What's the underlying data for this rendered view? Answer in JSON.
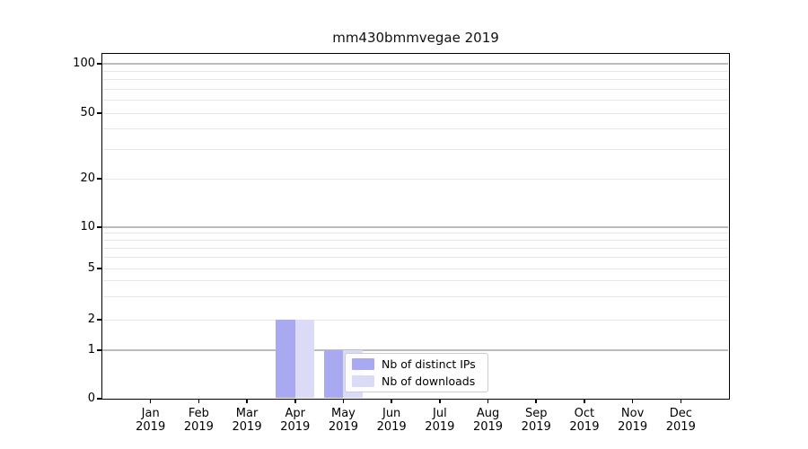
{
  "title": "mm430bmmvegae 2019",
  "chart_data": {
    "type": "bar",
    "title": "mm430bmmvegae 2019",
    "categories": [
      "Jan",
      "Feb",
      "Mar",
      "Apr",
      "May",
      "Jun",
      "Jul",
      "Aug",
      "Sep",
      "Oct",
      "Nov",
      "Dec"
    ],
    "category_year": "2019",
    "series": [
      {
        "name": "Nb of distinct IPs",
        "color": "#a9a9f1",
        "values": [
          0,
          0,
          0,
          2,
          1,
          0,
          0,
          0,
          0,
          0,
          0,
          0
        ]
      },
      {
        "name": "Nb of downloads",
        "color": "#dbdbf8",
        "values": [
          0,
          0,
          0,
          2,
          1,
          0,
          0,
          0,
          0,
          0,
          0,
          0
        ]
      }
    ],
    "y_axis": {
      "ticks": [
        0,
        1,
        2,
        5,
        10,
        20,
        50,
        100
      ],
      "scale": "log-like with zero baseline",
      "range": [
        0,
        120
      ]
    },
    "x_axis": {
      "tick_label_lines": [
        "month",
        "year"
      ]
    },
    "grid": {
      "horizontal": true,
      "vertical": false,
      "major_values": [
        1,
        10,
        100
      ],
      "minor_values": [
        2,
        3,
        4,
        5,
        6,
        7,
        8,
        9,
        20,
        30,
        40,
        50,
        60,
        70,
        80,
        90
      ]
    },
    "legend_position": "inside-bottom-center"
  },
  "colors": {
    "bar_distinct_ips": "#a9a9f1",
    "bar_downloads": "#dbdbf8",
    "grid_major": "#bcbcbc",
    "grid_minor": "#e8e8e8",
    "axis": "#000000",
    "legend_border": "#cccccc",
    "background": "#ffffff"
  }
}
